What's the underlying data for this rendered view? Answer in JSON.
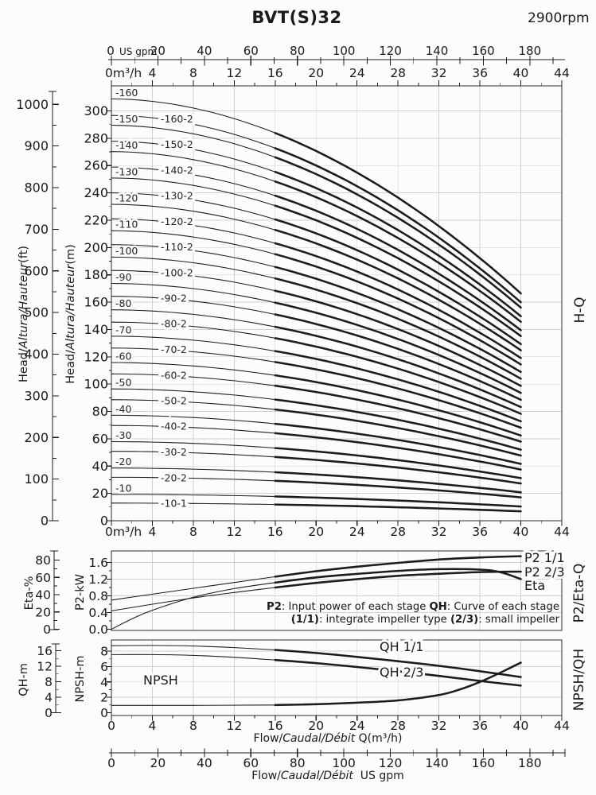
{
  "title": "BVT(S)32",
  "rpm": "2900rpm",
  "chart_data": {
    "type": "line",
    "title": "BVT(S)32",
    "speed": "2900rpm",
    "flow_axis_m3h": {
      "zero_label": "0m³/h",
      "major_ticks": [
        0,
        4,
        8,
        12,
        16,
        20,
        24,
        28,
        32,
        36,
        40,
        44
      ],
      "minor_step": 2,
      "max": 44
    },
    "flow_axis_usgpm": {
      "zero_label": "0",
      "unit": "US gpm",
      "major_ticks": [
        0,
        20,
        40,
        60,
        80,
        100,
        120,
        140,
        160,
        180
      ],
      "minor_step": 10,
      "max": 190
    },
    "main_chart": {
      "right_label": "H-Q",
      "y_axis_m": {
        "label_segments": [
          {
            "t": "Head/"
          },
          {
            "t": "Altura/Hauteur",
            "i": 1
          },
          {
            "t": "(m)"
          }
        ],
        "ticks": [
          0,
          20,
          40,
          60,
          80,
          100,
          120,
          140,
          160,
          180,
          200,
          220,
          240,
          260,
          280,
          300
        ],
        "minor_step": 10
      },
      "y_axis_ft": {
        "label_segments": [
          {
            "t": "Head/"
          },
          {
            "t": "Altura/Hauteur",
            "i": 1
          },
          {
            "t": "(ft)"
          }
        ],
        "ticks": [
          0,
          100,
          200,
          300,
          400,
          500,
          600,
          700,
          800,
          900,
          1000
        ],
        "minor_step": 50
      },
      "curves": [
        {
          "label": "-160",
          "shutoff_m": 308.8,
          "end_m": 166.4
        },
        {
          "label": "-160-2",
          "shutoff_m": 296.7,
          "end_m": 159.9,
          "trim": true
        },
        {
          "label": "-150",
          "shutoff_m": 289.5,
          "end_m": 156.0
        },
        {
          "label": "-150-2",
          "shutoff_m": 277.8,
          "end_m": 149.7,
          "trim": true
        },
        {
          "label": "-140",
          "shutoff_m": 270.2,
          "end_m": 145.6
        },
        {
          "label": "-140-2",
          "shutoff_m": 258.9,
          "end_m": 139.5,
          "trim": true
        },
        {
          "label": "-130",
          "shutoff_m": 250.9,
          "end_m": 135.2
        },
        {
          "label": "-130-2",
          "shutoff_m": 240.0,
          "end_m": 129.3,
          "trim": true
        },
        {
          "label": "-120",
          "shutoff_m": 231.6,
          "end_m": 124.8
        },
        {
          "label": "-120-2",
          "shutoff_m": 221.0,
          "end_m": 119.1,
          "trim": true
        },
        {
          "label": "-110",
          "shutoff_m": 212.3,
          "end_m": 114.4
        },
        {
          "label": "-110-2",
          "shutoff_m": 202.1,
          "end_m": 108.9,
          "trim": true
        },
        {
          "label": "-100",
          "shutoff_m": 193.0,
          "end_m": 104.0
        },
        {
          "label": "-100-2",
          "shutoff_m": 183.2,
          "end_m": 98.7,
          "trim": true
        },
        {
          "label": "-90",
          "shutoff_m": 173.7,
          "end_m": 93.6
        },
        {
          "label": "-90-2",
          "shutoff_m": 164.3,
          "end_m": 88.5,
          "trim": true
        },
        {
          "label": "-80",
          "shutoff_m": 154.4,
          "end_m": 83.2
        },
        {
          "label": "-80-2",
          "shutoff_m": 145.4,
          "end_m": 78.3,
          "trim": true
        },
        {
          "label": "-70",
          "shutoff_m": 135.1,
          "end_m": 72.8
        },
        {
          "label": "-70-2",
          "shutoff_m": 126.4,
          "end_m": 68.1,
          "trim": true
        },
        {
          "label": "-60",
          "shutoff_m": 115.8,
          "end_m": 62.4
        },
        {
          "label": "-60-2",
          "shutoff_m": 107.5,
          "end_m": 57.9,
          "trim": true
        },
        {
          "label": "-50",
          "shutoff_m": 96.5,
          "end_m": 52.0
        },
        {
          "label": "-50-2",
          "shutoff_m": 88.6,
          "end_m": 47.7,
          "trim": true
        },
        {
          "label": "-40",
          "shutoff_m": 77.2,
          "end_m": 41.6
        },
        {
          "label": "-40-2",
          "shutoff_m": 69.7,
          "end_m": 37.5,
          "trim": true
        },
        {
          "label": "-30",
          "shutoff_m": 57.9,
          "end_m": 31.2
        },
        {
          "label": "-30-2",
          "shutoff_m": 50.8,
          "end_m": 27.3,
          "trim": true
        },
        {
          "label": "-20",
          "shutoff_m": 38.6,
          "end_m": 20.8
        },
        {
          "label": "-20-2",
          "shutoff_m": 31.8,
          "end_m": 17.1,
          "trim": true
        },
        {
          "label": "-10",
          "shutoff_m": 19.3,
          "end_m": 10.4
        },
        {
          "label": "-10-1",
          "shutoff_m": 12.9,
          "end_m": 6.9,
          "trim": true
        }
      ]
    },
    "power_chart": {
      "right_label": "P2/Eta-Q",
      "eta_axis": {
        "label": "Eta-%",
        "ticks": [
          0,
          20,
          40,
          60,
          80
        ],
        "minor_step": 10
      },
      "p2_axis": {
        "label": "P2-kW",
        "ticks": [
          "0.0",
          "0.4",
          "0.8",
          "1.2",
          "1.6"
        ],
        "minor_step": 0.2
      },
      "series": [
        {
          "name": "P2 1/1",
          "scale": "kw",
          "points": [
            [
              0,
              0.7
            ],
            [
              4,
              0.84
            ],
            [
              8,
              0.98
            ],
            [
              12,
              1.12
            ],
            [
              16,
              1.26
            ],
            [
              20,
              1.39
            ],
            [
              24,
              1.5
            ],
            [
              28,
              1.59
            ],
            [
              32,
              1.67
            ],
            [
              36,
              1.72
            ],
            [
              40,
              1.75
            ]
          ]
        },
        {
          "name": "P2 2/3",
          "scale": "kw",
          "points": [
            [
              0,
              0.44
            ],
            [
              4,
              0.6
            ],
            [
              8,
              0.75
            ],
            [
              12,
              0.88
            ],
            [
              16,
              1.0
            ],
            [
              20,
              1.11
            ],
            [
              24,
              1.2
            ],
            [
              28,
              1.28
            ],
            [
              32,
              1.33
            ],
            [
              36,
              1.37
            ],
            [
              40,
              1.38
            ]
          ]
        },
        {
          "name": "Eta",
          "scale": "eta",
          "points": [
            [
              0,
              0
            ],
            [
              2,
              12
            ],
            [
              4,
              22
            ],
            [
              8,
              37
            ],
            [
              12,
              47
            ],
            [
              16,
              54
            ],
            [
              20,
              60
            ],
            [
              24,
              64
            ],
            [
              28,
              67.5
            ],
            [
              32,
              69.5
            ],
            [
              36,
              69
            ],
            [
              38,
              66
            ],
            [
              40,
              58
            ]
          ]
        }
      ],
      "annotation": [
        [
          {
            "t": "P2",
            "b": 1
          },
          {
            "t": ": Input power of each stage "
          },
          {
            "t": "QH",
            "b": 1
          },
          {
            "t": ": Curve of each stage"
          }
        ],
        [
          {
            "t": "(1/1)",
            "b": 1
          },
          {
            "t": ": integrate impeller type "
          },
          {
            "t": "(2/3)",
            "b": 1
          },
          {
            "t": ": small impeller"
          }
        ]
      ]
    },
    "npsh_chart": {
      "right_label": "NPSH/QH",
      "qh_axis": {
        "label": "QH-m",
        "ticks": [
          0,
          4,
          8,
          12,
          16
        ],
        "minor_step": 2
      },
      "npsh_axis": {
        "label": "NPSH-m",
        "ticks": [
          0,
          2,
          4,
          6,
          8
        ],
        "minor_step": 1
      },
      "series": [
        {
          "name": "QH 1/1",
          "scale": "qh",
          "points": [
            [
              0,
              17.3
            ],
            [
              4,
              17.35
            ],
            [
              8,
              17.2
            ],
            [
              12,
              16.8
            ],
            [
              16,
              16.2
            ],
            [
              20,
              15.4
            ],
            [
              24,
              14.4
            ],
            [
              28,
              13.3
            ],
            [
              32,
              12.1
            ],
            [
              36,
              10.7
            ],
            [
              40,
              9.2
            ]
          ]
        },
        {
          "name": "QH 2/3",
          "scale": "qh",
          "points": [
            [
              0,
              15.0
            ],
            [
              4,
              15.0
            ],
            [
              8,
              14.8
            ],
            [
              12,
              14.3
            ],
            [
              16,
              13.6
            ],
            [
              20,
              12.8
            ],
            [
              24,
              11.8
            ],
            [
              28,
              10.7
            ],
            [
              32,
              9.5
            ],
            [
              36,
              8.2
            ],
            [
              40,
              7.0
            ]
          ]
        },
        {
          "name": "NPSH",
          "scale": "npsh",
          "points": [
            [
              0,
              0.95
            ],
            [
              8,
              0.95
            ],
            [
              16,
              1.0
            ],
            [
              20,
              1.1
            ],
            [
              24,
              1.3
            ],
            [
              28,
              1.6
            ],
            [
              32,
              2.3
            ],
            [
              34,
              3.0
            ],
            [
              36,
              4.0
            ],
            [
              38,
              5.2
            ],
            [
              40,
              6.5
            ]
          ]
        }
      ],
      "x_title_m3h_segments": [
        {
          "t": "Flow/"
        },
        {
          "t": "Caudal/Débit",
          "i": 1
        },
        {
          "t": " Q(m³/h)"
        }
      ],
      "x_title_usgpm_segments": [
        {
          "t": "Flow/"
        },
        {
          "t": "Caudal/Débit",
          "i": 1
        },
        {
          "t": "  US gpm"
        }
      ]
    }
  }
}
